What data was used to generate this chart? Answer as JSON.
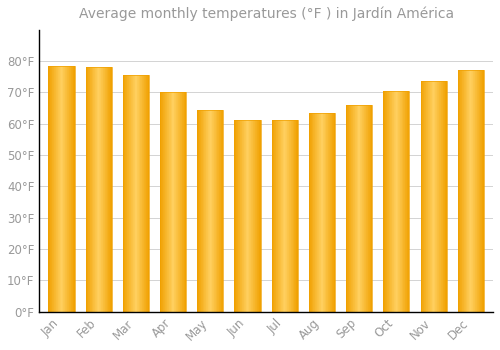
{
  "title": "Average monthly temperatures (°F ) in Jardín América",
  "months": [
    "Jan",
    "Feb",
    "Mar",
    "Apr",
    "May",
    "Jun",
    "Jul",
    "Aug",
    "Sep",
    "Oct",
    "Nov",
    "Dec"
  ],
  "values": [
    78.5,
    78,
    75.5,
    70,
    64.5,
    61,
    61,
    63.5,
    66,
    70.5,
    73.5,
    77
  ],
  "bar_color_center": "#FFD060",
  "bar_color_edge": "#F0A000",
  "background_color": "#FFFFFF",
  "grid_color": "#CCCCCC",
  "text_color": "#999999",
  "spine_color": "#000000",
  "ylim": [
    0,
    90
  ],
  "yticks": [
    0,
    10,
    20,
    30,
    40,
    50,
    60,
    70,
    80
  ],
  "title_fontsize": 10,
  "tick_fontsize": 8.5,
  "bar_width": 0.7
}
